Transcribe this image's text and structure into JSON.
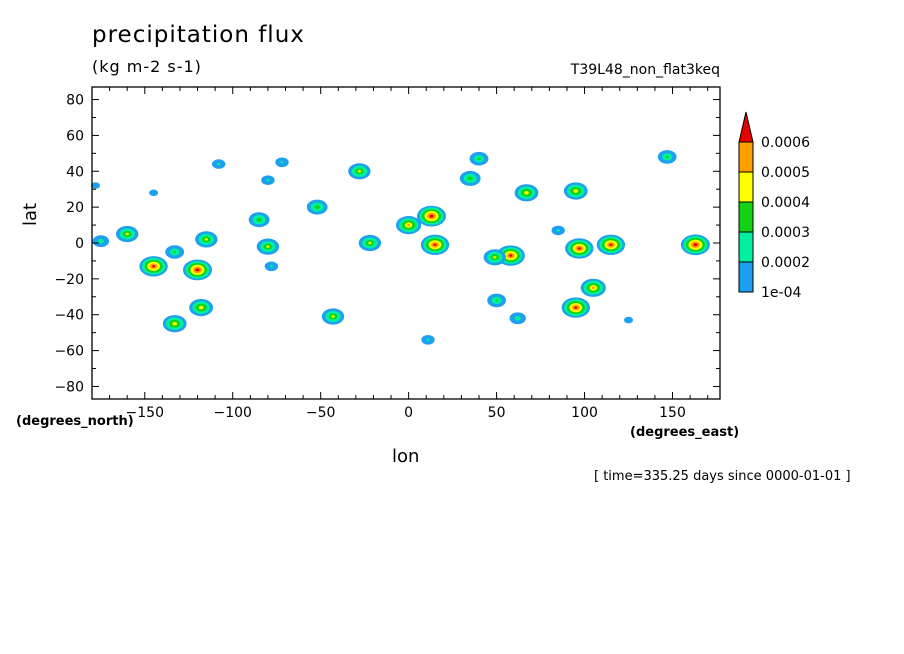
{
  "header": {
    "title": "precipitation flux",
    "units": "(kg m-2 s-1)",
    "run_name": "T39L48_non_flat3keq",
    "time_note": "[ time=335.25 days since 0000-01-01 ]"
  },
  "chart_data": {
    "type": "heatmap",
    "title": "precipitation flux",
    "units": "(kg m-2 s-1)",
    "xlabel": "lon",
    "ylabel": "lat",
    "x_unit_label": "(degrees_east)",
    "y_unit_label": "(degrees_north)",
    "xlim": [
      -180,
      177
    ],
    "ylim": [
      -87,
      87
    ],
    "x_ticks": [
      -150,
      -100,
      -50,
      0,
      50,
      100,
      150
    ],
    "y_ticks": [
      -80,
      -60,
      -40,
      -20,
      0,
      20,
      40,
      60,
      80
    ],
    "colorbar": {
      "levels": [
        0.0001,
        0.0002,
        0.0003,
        0.0004,
        0.0005,
        0.0006
      ],
      "labels": [
        "1e-04",
        "0.0002",
        "0.0003",
        "0.0004",
        "0.0005",
        "0.0006"
      ],
      "colors": [
        "#1ea0f0",
        "#00f0a0",
        "#14d214",
        "#ffff00",
        "#ffa000",
        "#e60000"
      ],
      "extend": "max"
    },
    "cells": [
      {
        "lon": -120,
        "lat": -15,
        "peak": 0.00065
      },
      {
        "lon": -145,
        "lat": -13,
        "peak": 0.00062
      },
      {
        "lon": -133,
        "lat": -45,
        "peak": 0.00045
      },
      {
        "lon": -118,
        "lat": -36,
        "peak": 0.00045
      },
      {
        "lon": -133,
        "lat": -5,
        "peak": 0.0003
      },
      {
        "lon": -115,
        "lat": 2,
        "peak": 0.0004
      },
      {
        "lon": -160,
        "lat": 5,
        "peak": 0.0004
      },
      {
        "lon": -175,
        "lat": 1,
        "peak": 0.00025
      },
      {
        "lon": -178,
        "lat": 32,
        "peak": 0.00015
      },
      {
        "lon": -145,
        "lat": 28,
        "peak": 0.00015
      },
      {
        "lon": -108,
        "lat": 44,
        "peak": 0.0002
      },
      {
        "lon": -85,
        "lat": 13,
        "peak": 0.00035
      },
      {
        "lon": -80,
        "lat": -2,
        "peak": 0.0004
      },
      {
        "lon": -78,
        "lat": -13,
        "peak": 0.0002
      },
      {
        "lon": -72,
        "lat": 45,
        "peak": 0.0002
      },
      {
        "lon": -80,
        "lat": 35,
        "peak": 0.0002
      },
      {
        "lon": -52,
        "lat": 20,
        "peak": 0.00035
      },
      {
        "lon": -28,
        "lat": 40,
        "peak": 0.0004
      },
      {
        "lon": -22,
        "lat": 0,
        "peak": 0.0004
      },
      {
        "lon": -43,
        "lat": -41,
        "peak": 0.0004
      },
      {
        "lon": 0,
        "lat": 10,
        "peak": 0.0005
      },
      {
        "lon": 13,
        "lat": 15,
        "peak": 0.00065
      },
      {
        "lon": 15,
        "lat": -1,
        "peak": 0.00062
      },
      {
        "lon": 11,
        "lat": -54,
        "peak": 0.0002
      },
      {
        "lon": 40,
        "lat": 47,
        "peak": 0.0003
      },
      {
        "lon": 35,
        "lat": 36,
        "peak": 0.00035
      },
      {
        "lon": 58,
        "lat": -7,
        "peak": 0.00062
      },
      {
        "lon": 49,
        "lat": -8,
        "peak": 0.0004
      },
      {
        "lon": 50,
        "lat": -32,
        "peak": 0.0003
      },
      {
        "lon": 62,
        "lat": -42,
        "peak": 0.00025
      },
      {
        "lon": 67,
        "lat": 28,
        "peak": 0.00045
      },
      {
        "lon": 95,
        "lat": 29,
        "peak": 0.00045
      },
      {
        "lon": 97,
        "lat": -3,
        "peak": 0.00062
      },
      {
        "lon": 115,
        "lat": -1,
        "peak": 0.00062
      },
      {
        "lon": 95,
        "lat": -36,
        "peak": 0.00062
      },
      {
        "lon": 105,
        "lat": -25,
        "peak": 0.0005
      },
      {
        "lon": 163,
        "lat": -1,
        "peak": 0.00065
      },
      {
        "lon": 147,
        "lat": 48,
        "peak": 0.0003
      },
      {
        "lon": 125,
        "lat": -43,
        "peak": 0.00015
      },
      {
        "lon": 85,
        "lat": 7,
        "peak": 0.0002
      }
    ]
  }
}
